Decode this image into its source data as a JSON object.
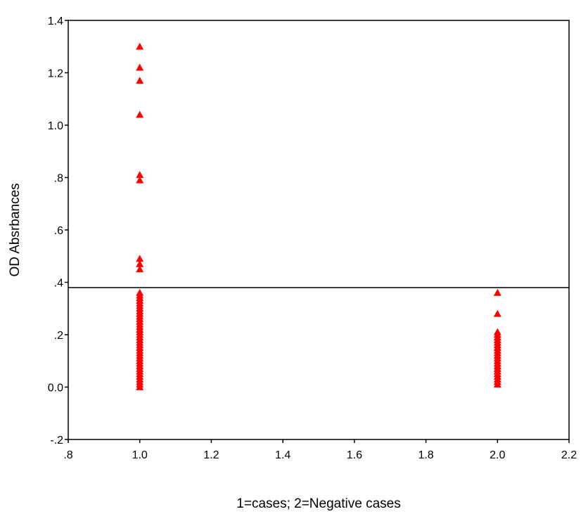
{
  "chart_data": {
    "type": "scatter",
    "title": "",
    "xlabel": "1=cases; 2=Negative cases",
    "ylabel": "OD Absrbances",
    "xlim": [
      0.8,
      2.2
    ],
    "ylim": [
      -0.2,
      1.4
    ],
    "x_ticks": [
      0.8,
      1.0,
      1.2,
      1.4,
      1.6,
      1.8,
      2.0,
      2.2
    ],
    "x_tick_labels": [
      ".8",
      "1.0",
      "1.2",
      "1.4",
      "1.6",
      "1.8",
      "2.0",
      "2.2"
    ],
    "y_ticks": [
      -0.2,
      0.0,
      0.2,
      0.4,
      0.6,
      0.8,
      1.0,
      1.2,
      1.4
    ],
    "y_tick_labels": [
      "-.2",
      "0.0",
      ".2",
      ".4",
      ".6",
      ".8",
      "1.0",
      "1.2",
      "1.4"
    ],
    "grid": false,
    "marker": "triangle",
    "marker_color": "#ff0000",
    "reference_line": {
      "y": 0.38,
      "color": "#000000"
    },
    "series": [
      {
        "x": [
          1,
          1,
          1,
          1,
          1,
          1,
          1,
          1,
          1,
          1,
          1,
          1,
          1,
          1,
          1,
          1,
          1,
          1,
          1,
          1,
          1,
          1,
          1,
          1,
          1,
          1,
          1,
          1,
          1,
          1,
          1,
          1,
          1,
          1,
          1,
          1,
          1,
          1,
          1,
          1,
          1,
          1,
          1,
          1,
          1,
          1
        ],
        "y": [
          1.3,
          1.22,
          1.17,
          1.04,
          0.81,
          0.79,
          0.49,
          0.47,
          0.45,
          0.36,
          0.35,
          0.34,
          0.33,
          0.32,
          0.31,
          0.3,
          0.29,
          0.28,
          0.27,
          0.26,
          0.25,
          0.24,
          0.23,
          0.22,
          0.21,
          0.2,
          0.19,
          0.18,
          0.17,
          0.16,
          0.15,
          0.14,
          0.13,
          0.12,
          0.11,
          0.1,
          0.09,
          0.08,
          0.07,
          0.06,
          0.05,
          0.04,
          0.03,
          0.02,
          0.01,
          0.0
        ]
      },
      {
        "x": [
          2,
          2,
          2,
          2,
          2,
          2,
          2,
          2,
          2,
          2,
          2,
          2,
          2,
          2,
          2,
          2,
          2,
          2,
          2,
          2,
          2,
          2,
          2
        ],
        "y": [
          0.36,
          0.28,
          0.21,
          0.2,
          0.19,
          0.18,
          0.17,
          0.16,
          0.15,
          0.14,
          0.13,
          0.12,
          0.11,
          0.1,
          0.09,
          0.08,
          0.07,
          0.06,
          0.05,
          0.04,
          0.03,
          0.02,
          0.01
        ]
      }
    ]
  }
}
